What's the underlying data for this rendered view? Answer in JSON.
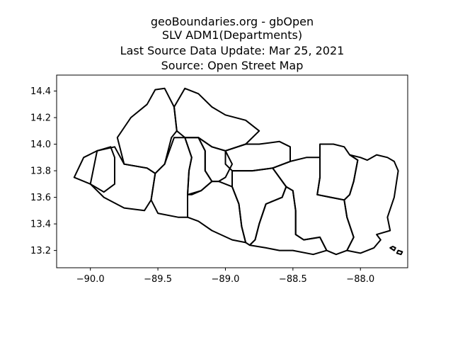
{
  "title": {
    "line1": "geoBoundaries.org - gbOpen",
    "line2": "SLV ADM1(Departments)",
    "line3": "Last Source Data Update: Mar 25, 2021",
    "line4": "Source: Open Street Map"
  },
  "chart_data": {
    "type": "map",
    "xlim": [
      -90.25,
      -87.65
    ],
    "ylim": [
      13.07,
      14.52
    ],
    "x_ticks": [
      -90.0,
      -89.5,
      -89.0,
      -88.5,
      -88.0
    ],
    "x_tick_labels": [
      "−90.0",
      "−89.5",
      "−89.0",
      "−88.5",
      "−88.0"
    ],
    "y_ticks": [
      13.2,
      13.4,
      13.6,
      13.8,
      14.0,
      14.2,
      14.4
    ],
    "y_tick_labels": [
      "13.2",
      "13.4",
      "13.6",
      "13.8",
      "14.0",
      "14.2",
      "14.4"
    ],
    "grid": false,
    "outline_color": "#000000",
    "regions": [
      {
        "id": "ahuachapan",
        "coords": [
          [
            -90.12,
            13.75
          ],
          [
            -90.05,
            13.9
          ],
          [
            -89.95,
            13.95
          ],
          [
            -89.85,
            13.98
          ],
          [
            -89.82,
            13.9
          ],
          [
            -89.82,
            13.7
          ],
          [
            -89.9,
            13.64
          ],
          [
            -90.0,
            13.7
          ],
          [
            -90.12,
            13.75
          ]
        ]
      },
      {
        "id": "santa-ana",
        "coords": [
          [
            -89.8,
            14.05
          ],
          [
            -89.7,
            14.2
          ],
          [
            -89.58,
            14.3
          ],
          [
            -89.52,
            14.41
          ],
          [
            -89.45,
            14.42
          ],
          [
            -89.38,
            14.28
          ],
          [
            -89.36,
            14.1
          ],
          [
            -89.4,
            14.05
          ],
          [
            -89.45,
            13.85
          ],
          [
            -89.52,
            13.78
          ],
          [
            -89.58,
            13.82
          ],
          [
            -89.75,
            13.85
          ],
          [
            -89.8,
            14.05
          ]
        ]
      },
      {
        "id": "sonsonate",
        "coords": [
          [
            -89.95,
            13.95
          ],
          [
            -89.82,
            13.98
          ],
          [
            -89.75,
            13.85
          ],
          [
            -89.58,
            13.82
          ],
          [
            -89.52,
            13.78
          ],
          [
            -89.55,
            13.58
          ],
          [
            -89.6,
            13.5
          ],
          [
            -89.75,
            13.52
          ],
          [
            -89.9,
            13.6
          ],
          [
            -90.0,
            13.7
          ],
          [
            -89.95,
            13.95
          ]
        ]
      },
      {
        "id": "chalatenango",
        "coords": [
          [
            -89.38,
            14.28
          ],
          [
            -89.3,
            14.42
          ],
          [
            -89.2,
            14.38
          ],
          [
            -89.1,
            14.28
          ],
          [
            -89.0,
            14.22
          ],
          [
            -88.85,
            14.18
          ],
          [
            -88.75,
            14.1
          ],
          [
            -88.85,
            14.0
          ],
          [
            -89.0,
            13.95
          ],
          [
            -89.1,
            13.98
          ],
          [
            -89.2,
            14.05
          ],
          [
            -89.3,
            14.05
          ],
          [
            -89.36,
            14.1
          ],
          [
            -89.38,
            14.28
          ]
        ]
      },
      {
        "id": "la-libertad",
        "coords": [
          [
            -89.45,
            13.85
          ],
          [
            -89.38,
            14.05
          ],
          [
            -89.3,
            14.05
          ],
          [
            -89.25,
            13.9
          ],
          [
            -89.27,
            13.8
          ],
          [
            -89.28,
            13.62
          ],
          [
            -89.28,
            13.45
          ],
          [
            -89.35,
            13.45
          ],
          [
            -89.5,
            13.48
          ],
          [
            -89.55,
            13.58
          ],
          [
            -89.52,
            13.78
          ],
          [
            -89.45,
            13.85
          ]
        ]
      },
      {
        "id": "san-salvador",
        "coords": [
          [
            -89.3,
            14.05
          ],
          [
            -89.2,
            14.05
          ],
          [
            -89.15,
            13.95
          ],
          [
            -89.15,
            13.8
          ],
          [
            -89.1,
            13.72
          ],
          [
            -89.18,
            13.65
          ],
          [
            -89.25,
            13.62
          ],
          [
            -89.28,
            13.62
          ],
          [
            -89.27,
            13.8
          ],
          [
            -89.25,
            13.9
          ],
          [
            -89.3,
            14.05
          ]
        ]
      },
      {
        "id": "cuscatlan",
        "coords": [
          [
            -89.2,
            14.05
          ],
          [
            -89.1,
            13.98
          ],
          [
            -89.0,
            13.95
          ],
          [
            -88.95,
            13.85
          ],
          [
            -89.0,
            13.75
          ],
          [
            -89.05,
            13.72
          ],
          [
            -89.1,
            13.72
          ],
          [
            -89.15,
            13.8
          ],
          [
            -89.15,
            13.95
          ],
          [
            -89.2,
            14.05
          ]
        ]
      },
      {
        "id": "la-paz",
        "coords": [
          [
            -89.28,
            13.45
          ],
          [
            -89.28,
            13.62
          ],
          [
            -89.18,
            13.65
          ],
          [
            -89.1,
            13.72
          ],
          [
            -89.05,
            13.72
          ],
          [
            -88.95,
            13.68
          ],
          [
            -88.9,
            13.55
          ],
          [
            -88.88,
            13.38
          ],
          [
            -88.85,
            13.26
          ],
          [
            -88.95,
            13.28
          ],
          [
            -89.1,
            13.35
          ],
          [
            -89.2,
            13.42
          ],
          [
            -89.28,
            13.45
          ]
        ]
      },
      {
        "id": "cabanas",
        "coords": [
          [
            -89.0,
            13.95
          ],
          [
            -88.85,
            14.0
          ],
          [
            -88.75,
            14.0
          ],
          [
            -88.6,
            14.02
          ],
          [
            -88.52,
            13.98
          ],
          [
            -88.52,
            13.87
          ],
          [
            -88.65,
            13.82
          ],
          [
            -88.8,
            13.8
          ],
          [
            -88.95,
            13.8
          ],
          [
            -89.0,
            13.85
          ],
          [
            -89.0,
            13.95
          ]
        ]
      },
      {
        "id": "san-vicente",
        "coords": [
          [
            -88.95,
            13.8
          ],
          [
            -88.8,
            13.8
          ],
          [
            -88.65,
            13.82
          ],
          [
            -88.55,
            13.68
          ],
          [
            -88.58,
            13.6
          ],
          [
            -88.7,
            13.55
          ],
          [
            -88.75,
            13.4
          ],
          [
            -88.78,
            13.28
          ],
          [
            -88.82,
            13.24
          ],
          [
            -88.85,
            13.26
          ],
          [
            -88.88,
            13.38
          ],
          [
            -88.9,
            13.55
          ],
          [
            -88.95,
            13.68
          ],
          [
            -88.95,
            13.8
          ]
        ]
      },
      {
        "id": "usulutan",
        "coords": [
          [
            -88.82,
            13.24
          ],
          [
            -88.78,
            13.28
          ],
          [
            -88.75,
            13.4
          ],
          [
            -88.7,
            13.55
          ],
          [
            -88.58,
            13.6
          ],
          [
            -88.55,
            13.68
          ],
          [
            -88.5,
            13.65
          ],
          [
            -88.48,
            13.5
          ],
          [
            -88.48,
            13.32
          ],
          [
            -88.42,
            13.28
          ],
          [
            -88.3,
            13.3
          ],
          [
            -88.25,
            13.2
          ],
          [
            -88.35,
            13.17
          ],
          [
            -88.5,
            13.2
          ],
          [
            -88.6,
            13.2
          ],
          [
            -88.7,
            13.22
          ],
          [
            -88.82,
            13.24
          ]
        ]
      },
      {
        "id": "san-miguel",
        "coords": [
          [
            -88.52,
            13.87
          ],
          [
            -88.4,
            13.9
          ],
          [
            -88.3,
            13.9
          ],
          [
            -88.3,
            13.75
          ],
          [
            -88.32,
            13.62
          ],
          [
            -88.22,
            13.6
          ],
          [
            -88.12,
            13.58
          ],
          [
            -88.1,
            13.45
          ],
          [
            -88.05,
            13.3
          ],
          [
            -88.1,
            13.2
          ],
          [
            -88.18,
            13.17
          ],
          [
            -88.25,
            13.2
          ],
          [
            -88.3,
            13.3
          ],
          [
            -88.42,
            13.28
          ],
          [
            -88.48,
            13.32
          ],
          [
            -88.48,
            13.5
          ],
          [
            -88.5,
            13.65
          ],
          [
            -88.55,
            13.68
          ],
          [
            -88.65,
            13.82
          ],
          [
            -88.52,
            13.87
          ]
        ]
      },
      {
        "id": "morazan",
        "coords": [
          [
            -88.3,
            13.9
          ],
          [
            -88.3,
            14.0
          ],
          [
            -88.2,
            14.0
          ],
          [
            -88.12,
            13.98
          ],
          [
            -88.08,
            13.92
          ],
          [
            -88.02,
            13.88
          ],
          [
            -88.05,
            13.72
          ],
          [
            -88.08,
            13.62
          ],
          [
            -88.12,
            13.58
          ],
          [
            -88.22,
            13.6
          ],
          [
            -88.32,
            13.62
          ],
          [
            -88.3,
            13.75
          ],
          [
            -88.3,
            13.9
          ]
        ]
      },
      {
        "id": "la-union",
        "coords": [
          [
            -88.08,
            13.92
          ],
          [
            -88.02,
            13.88
          ],
          [
            -88.05,
            13.72
          ],
          [
            -88.08,
            13.62
          ],
          [
            -88.12,
            13.58
          ],
          [
            -88.1,
            13.45
          ],
          [
            -88.05,
            13.3
          ],
          [
            -88.1,
            13.2
          ],
          [
            -88.0,
            13.18
          ],
          [
            -87.9,
            13.22
          ],
          [
            -87.85,
            13.28
          ],
          [
            -87.88,
            13.32
          ],
          [
            -87.78,
            13.35
          ],
          [
            -87.8,
            13.45
          ],
          [
            -87.75,
            13.6
          ],
          [
            -87.72,
            13.8
          ],
          [
            -87.75,
            13.87
          ],
          [
            -87.8,
            13.9
          ],
          [
            -87.88,
            13.92
          ],
          [
            -87.95,
            13.88
          ],
          [
            -88.0,
            13.9
          ],
          [
            -88.08,
            13.92
          ]
        ]
      }
    ],
    "islands": [
      {
        "id": "island-a",
        "coords": [
          [
            -87.78,
            13.22
          ],
          [
            -87.75,
            13.2
          ],
          [
            -87.74,
            13.22
          ],
          [
            -87.76,
            13.23
          ],
          [
            -87.78,
            13.22
          ]
        ]
      },
      {
        "id": "island-b",
        "coords": [
          [
            -87.73,
            13.18
          ],
          [
            -87.7,
            13.17
          ],
          [
            -87.69,
            13.19
          ],
          [
            -87.72,
            13.2
          ],
          [
            -87.73,
            13.18
          ]
        ]
      }
    ]
  }
}
